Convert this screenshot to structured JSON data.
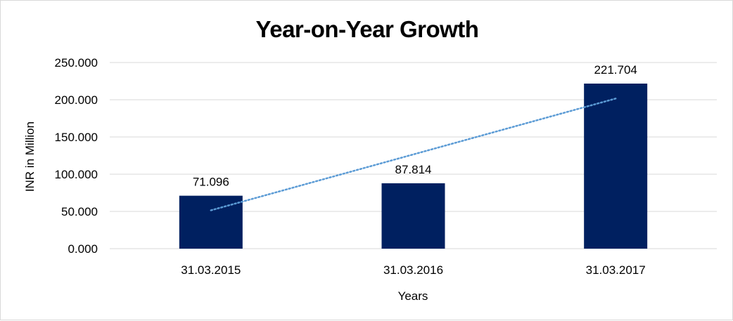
{
  "chart_data": {
    "type": "bar",
    "title": "Year-on-Year Growth",
    "xlabel": "Years",
    "ylabel": "INR in Million",
    "categories": [
      "31.03.2015",
      "31.03.2016",
      "31.03.2017"
    ],
    "values": [
      71.096,
      87.814,
      221.704
    ],
    "value_labels": [
      "71.096",
      "87.814",
      "221.704"
    ],
    "ylim": [
      0,
      250
    ],
    "yticks": [
      0,
      50,
      100,
      150,
      200,
      250
    ],
    "ytick_labels": [
      "0.000",
      "50.000",
      "100.000",
      "150.000",
      "200.000",
      "250.000"
    ],
    "grid": true,
    "legend": "none",
    "bar_color": "#002060",
    "trendline": {
      "type": "linear",
      "style": "dotted",
      "color": "#5b9bd5",
      "start_value": 51.5,
      "end_value": 201.6
    }
  }
}
